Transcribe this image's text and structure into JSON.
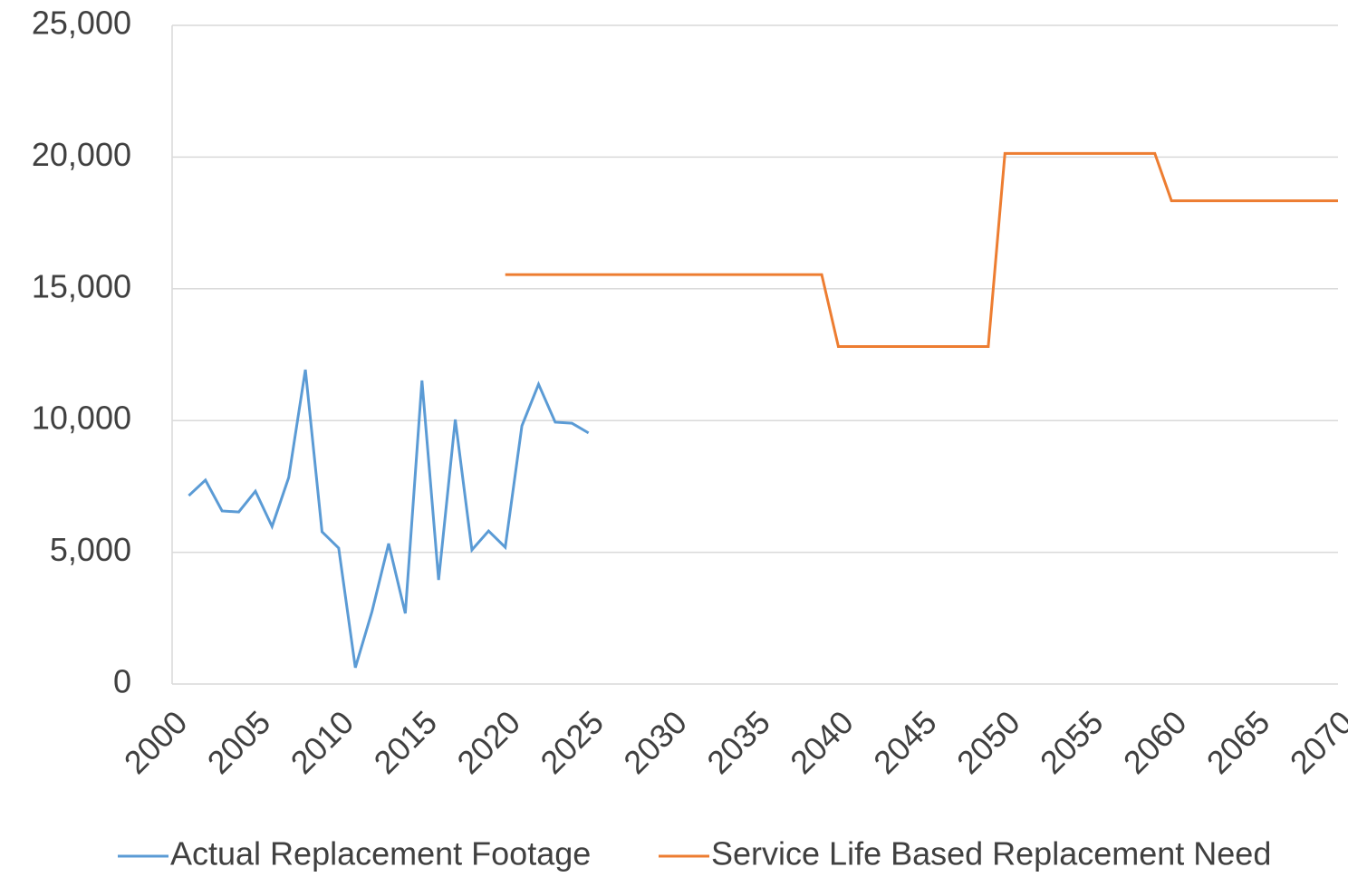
{
  "chart_data": {
    "type": "line",
    "series": [
      {
        "name": "Actual Replacement Footage",
        "color": "#5b9bd5",
        "x": [
          2001,
          2002,
          2003,
          2004,
          2005,
          2006,
          2007,
          2008,
          2009,
          2010,
          2011,
          2012,
          2013,
          2014,
          2015,
          2016,
          2017,
          2018,
          2019,
          2020,
          2021,
          2022,
          2023,
          2024,
          2025
        ],
        "values": [
          7150,
          7740,
          6570,
          6530,
          7320,
          5980,
          7840,
          11930,
          5780,
          5160,
          620,
          2750,
          5330,
          2680,
          11520,
          3950,
          10040,
          5090,
          5810,
          5190,
          9800,
          11380,
          9940,
          9900,
          9530
        ]
      },
      {
        "name": "Service Life Based Replacement Need",
        "color": "#ed7d31",
        "x": [
          2020,
          2021,
          2022,
          2023,
          2024,
          2025,
          2026,
          2027,
          2028,
          2029,
          2030,
          2031,
          2032,
          2033,
          2034,
          2035,
          2036,
          2037,
          2038,
          2039,
          2040,
          2041,
          2042,
          2043,
          2044,
          2045,
          2046,
          2047,
          2048,
          2049,
          2050,
          2051,
          2052,
          2053,
          2054,
          2055,
          2056,
          2057,
          2058,
          2059,
          2060,
          2061,
          2062,
          2063,
          2064,
          2065,
          2066,
          2067,
          2068,
          2069,
          2070
        ],
        "values": [
          15540,
          15540,
          15540,
          15540,
          15540,
          15540,
          15540,
          15540,
          15540,
          15540,
          15540,
          15540,
          15540,
          15540,
          15540,
          15540,
          15540,
          15540,
          15540,
          15540,
          12810,
          12810,
          12810,
          12810,
          12810,
          12810,
          12810,
          12810,
          12810,
          12810,
          20140,
          20140,
          20140,
          20140,
          20140,
          20140,
          20140,
          20140,
          20140,
          20140,
          18340,
          18340,
          18340,
          18340,
          18340,
          18340,
          18340,
          18340,
          18340,
          18340,
          18340
        ]
      }
    ],
    "xlim": [
      2000,
      2070
    ],
    "xticks": [
      2000,
      2005,
      2010,
      2015,
      2020,
      2025,
      2030,
      2035,
      2040,
      2045,
      2050,
      2055,
      2060,
      2065,
      2070
    ],
    "ylim": [
      0,
      25000
    ],
    "yticks": [
      0,
      {
        "value": 5000,
        "label": "5,000"
      },
      {
        "value": 10000,
        "label": "10,000"
      },
      {
        "value": 15000,
        "label": "15,000"
      },
      {
        "value": 20000,
        "label": "20,000"
      },
      {
        "value": 25000,
        "label": "25,000"
      }
    ],
    "grid": true,
    "legend": "bottom"
  }
}
